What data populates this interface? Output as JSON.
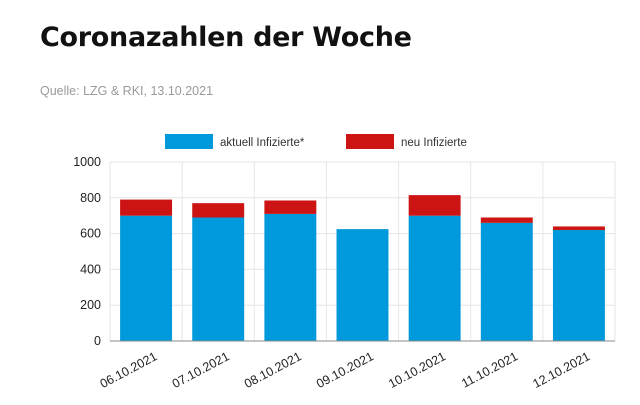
{
  "header": {
    "title": "Coronazahlen der Woche",
    "source": "Quelle: LZG & RKI, 13.10.2021"
  },
  "colors": {
    "series_active": "#0099db",
    "series_new": "#cc1414",
    "grid": "#e6e6e6",
    "axis": "#888888"
  },
  "chart_data": {
    "type": "bar",
    "stacked": true,
    "categories": [
      "06.10.2021",
      "07.10.2021",
      "08.10.2021",
      "09.10.2021",
      "10.10.2021",
      "11.10.2021",
      "12.10.2021"
    ],
    "series": [
      {
        "name": "aktuell Infizierte*",
        "values": [
          700,
          690,
          710,
          625,
          700,
          660,
          620
        ]
      },
      {
        "name": "neu Infizierte",
        "values": [
          90,
          80,
          75,
          0,
          115,
          30,
          20
        ]
      }
    ],
    "y_ticks": [
      "0",
      "200",
      "400",
      "600",
      "800",
      "1000"
    ],
    "ylim": [
      0,
      1000
    ],
    "legend": "top",
    "grid": true
  }
}
